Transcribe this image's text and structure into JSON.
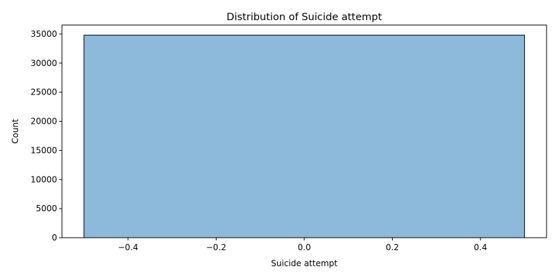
{
  "chart_data": {
    "type": "bar",
    "title": "Distribution of Suicide attempt",
    "xlabel": "Suicide attempt",
    "ylabel": "Count",
    "bars": [
      {
        "x_start": -0.5,
        "x_end": 0.5,
        "value": 34800
      }
    ],
    "xlim": [
      -0.55,
      0.55
    ],
    "ylim": [
      0,
      36540
    ],
    "xticks": [
      -0.4,
      -0.2,
      0.0,
      0.2,
      0.4
    ],
    "xtick_labels": [
      "−0.4",
      "−0.2",
      "0.0",
      "0.2",
      "0.4"
    ],
    "yticks": [
      0,
      5000,
      10000,
      15000,
      20000,
      25000,
      30000,
      35000
    ],
    "ytick_labels": [
      "0",
      "5000",
      "10000",
      "15000",
      "20000",
      "25000",
      "30000",
      "35000"
    ],
    "grid": false,
    "bar_color": "#8db9da",
    "edge_color": "#000000"
  }
}
